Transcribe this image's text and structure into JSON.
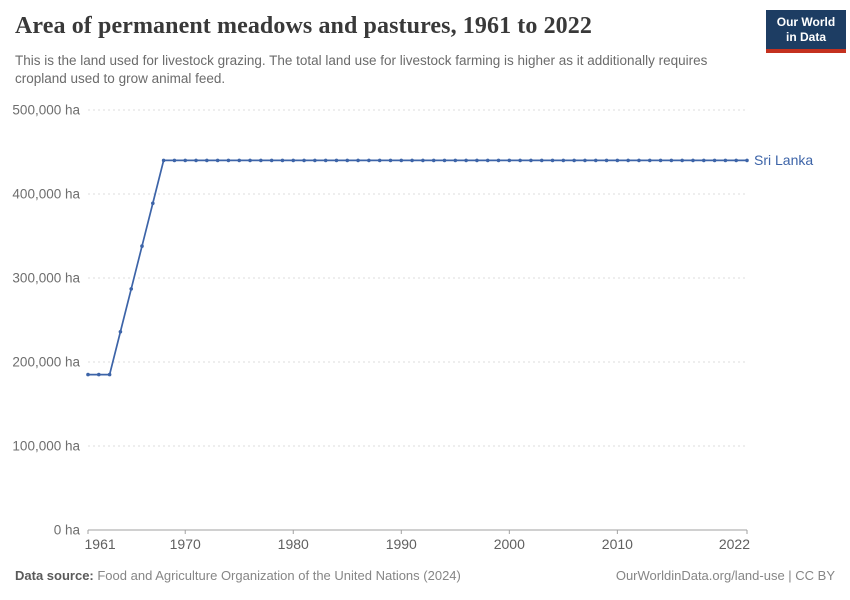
{
  "header": {
    "title": "Area of permanent meadows and pastures, 1961 to 2022",
    "subtitle": "This is the land used for livestock grazing. The total land use for livestock farming is higher as it additionally requires cropland used to grow animal feed.",
    "logo": {
      "line1": "Our World",
      "line2": "in Data"
    }
  },
  "footer": {
    "datasource_label": "Data source:",
    "datasource_value": " Food and Agriculture Organization of the United Nations (2024)",
    "credit": "OurWorldinData.org/land-use | CC BY"
  },
  "colors": {
    "line": "#3d64a8",
    "entity_label": "#3d64a8",
    "gridline": "#dcdcdc",
    "axis": "#a1a1a1",
    "logo_bg": "#1d3d63",
    "logo_red": "#c4311f"
  },
  "chart_data": {
    "type": "line",
    "title": "Area of permanent meadows and pastures, 1961 to 2022",
    "unit": "ha",
    "grid": true,
    "legend_position": "right-end-of-line",
    "xlim": [
      1961,
      2022
    ],
    "ylim": [
      0,
      500000
    ],
    "xticks": [
      1961,
      1970,
      1980,
      1990,
      2000,
      2010,
      2022
    ],
    "xtick_labels": [
      "1961",
      "1970",
      "1980",
      "1990",
      "2000",
      "2010",
      "2022"
    ],
    "yticks": [
      0,
      100000,
      200000,
      300000,
      400000,
      500000
    ],
    "ytick_labels": [
      "0 ha",
      "100,000 ha",
      "200,000 ha",
      "300,000 ha",
      "400,000 ha",
      "500,000 ha"
    ],
    "years": [
      1961,
      1962,
      1963,
      1964,
      1965,
      1966,
      1967,
      1968,
      1969,
      1970,
      1971,
      1972,
      1973,
      1974,
      1975,
      1976,
      1977,
      1978,
      1979,
      1980,
      1981,
      1982,
      1983,
      1984,
      1985,
      1986,
      1987,
      1988,
      1989,
      1990,
      1991,
      1992,
      1993,
      1994,
      1995,
      1996,
      1997,
      1998,
      1999,
      2000,
      2001,
      2002,
      2003,
      2004,
      2005,
      2006,
      2007,
      2008,
      2009,
      2010,
      2011,
      2012,
      2013,
      2014,
      2015,
      2016,
      2017,
      2018,
      2019,
      2020,
      2021,
      2022
    ],
    "series": [
      {
        "name": "Sri Lanka",
        "values": [
          185000,
          185000,
          185000,
          236000,
          287000,
          338000,
          389000,
          440000,
          440000,
          440000,
          440000,
          440000,
          440000,
          440000,
          440000,
          440000,
          440000,
          440000,
          440000,
          440000,
          440000,
          440000,
          440000,
          440000,
          440000,
          440000,
          440000,
          440000,
          440000,
          440000,
          440000,
          440000,
          440000,
          440000,
          440000,
          440000,
          440000,
          440000,
          440000,
          440000,
          440000,
          440000,
          440000,
          440000,
          440000,
          440000,
          440000,
          440000,
          440000,
          440000,
          440000,
          440000,
          440000,
          440000,
          440000,
          440000,
          440000,
          440000,
          440000,
          440000,
          440000,
          440000
        ]
      }
    ]
  }
}
